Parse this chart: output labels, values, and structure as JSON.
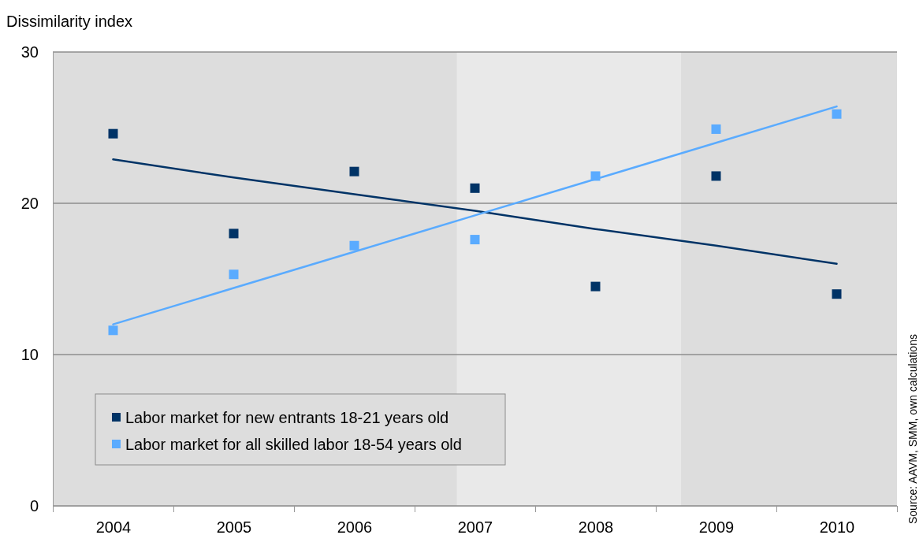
{
  "chart_data": {
    "type": "scatter",
    "ylabel": "Dissimilarity index",
    "x": [
      2004,
      2005,
      2006,
      2007,
      2008,
      2009,
      2010
    ],
    "xlim": [
      2003.5,
      2010.5
    ],
    "xticks": [
      {
        "value": 2003.5,
        "label": null
      },
      2004,
      {
        "value": 2004.5,
        "label": null
      },
      2005,
      {
        "value": 2005.5,
        "label": null
      },
      2006,
      {
        "value": 2006.5,
        "label": null
      },
      2007,
      {
        "value": 2007.5,
        "label": null
      },
      2008,
      {
        "value": 2008.5,
        "label": null
      },
      2009,
      {
        "value": 2009.5,
        "label": null
      },
      2010,
      {
        "value": 2010.5,
        "label": null
      }
    ],
    "ylim": [
      0,
      30
    ],
    "yticks": [
      0,
      10,
      20,
      30
    ],
    "grid": "y",
    "legend": "bottom left",
    "marker": "square",
    "series": [
      {
        "name": "Labor market for new entrants 18-21 years old",
        "color": "#003366",
        "values": [
          24.6,
          18.0,
          22.1,
          21.0,
          14.5,
          21.8,
          14.0
        ]
      },
      {
        "name": "Labor market for all skilled labor 18-54 years old",
        "color": "#5aabff",
        "values": [
          11.6,
          15.3,
          17.2,
          17.6,
          21.8,
          24.9,
          25.9
        ]
      },
      {
        "type": "line",
        "marker": "none",
        "color": "#003366",
        "values": [
          22.9,
          21.7,
          20.6,
          19.5,
          18.3,
          17.2,
          16.0
        ]
      },
      {
        "type": "line",
        "marker": "none",
        "color": "#5aabff",
        "values": [
          12.0,
          14.4,
          16.8,
          19.2,
          21.6,
          24.0,
          26.4
        ]
      }
    ],
    "bands": [
      {
        "axis": "x",
        "from": 2006.85,
        "to": 2008.71,
        "color": "#e9e9e9"
      }
    ],
    "annotations": [
      "Source: AAVM,  SMM, own calculations"
    ]
  }
}
